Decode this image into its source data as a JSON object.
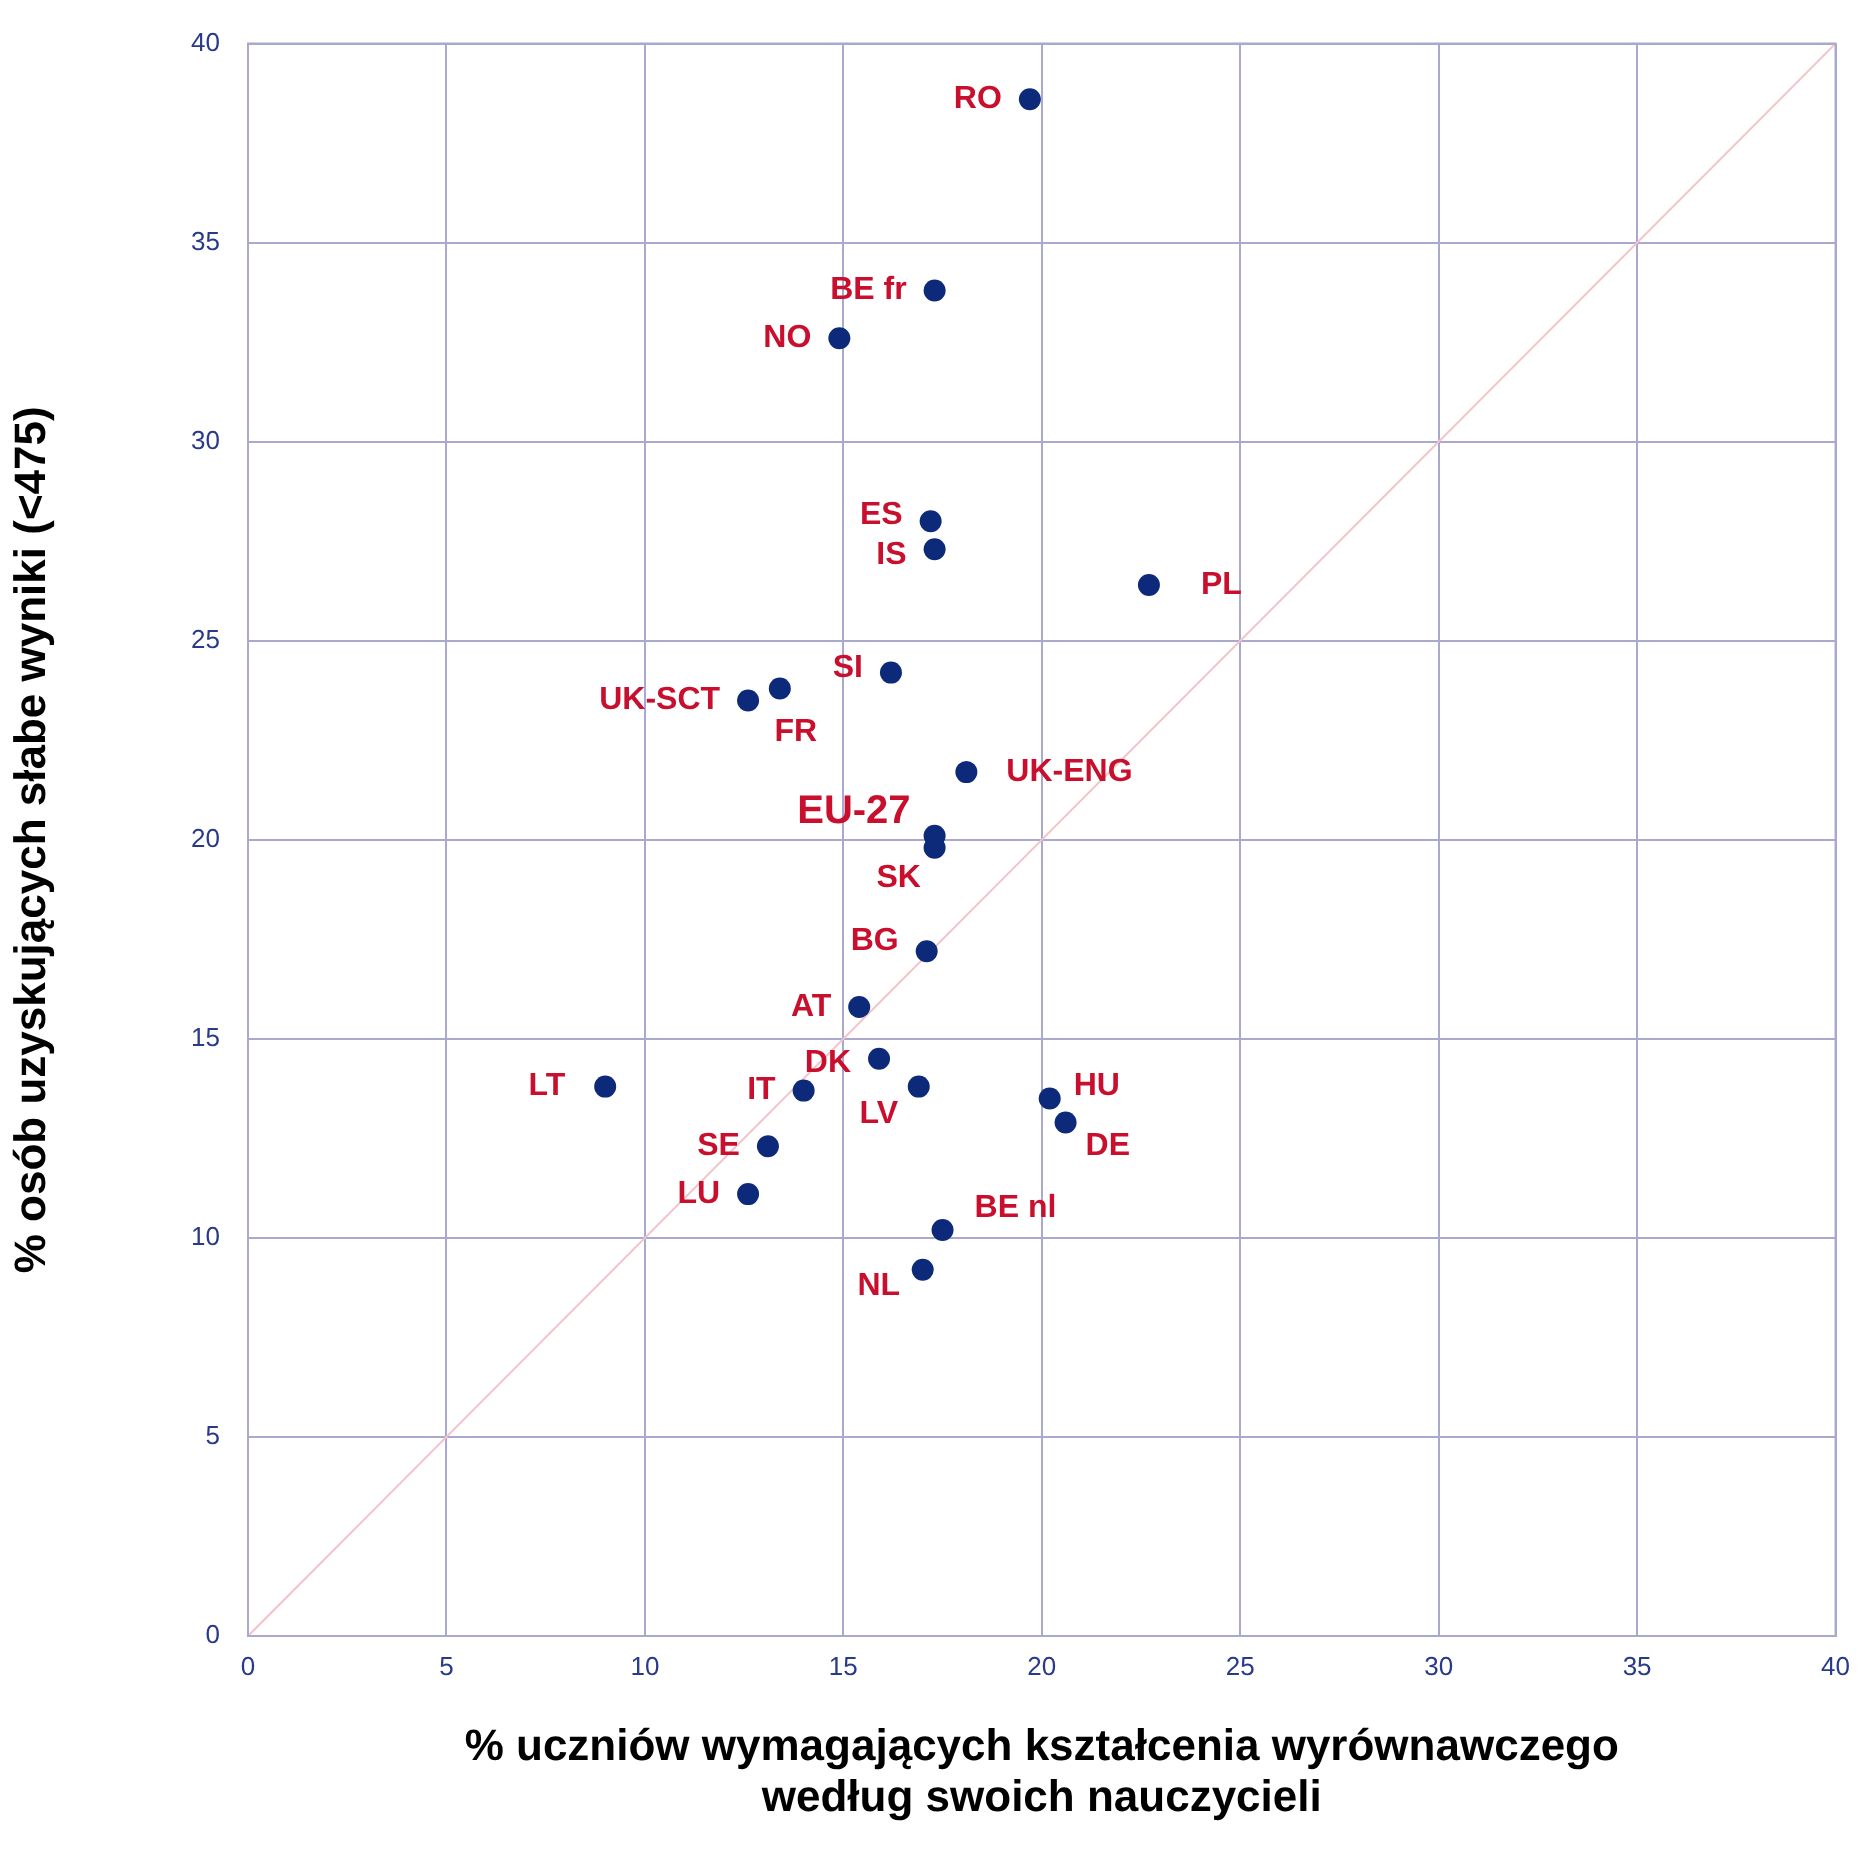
{
  "chart_data": {
    "type": "scatter",
    "xlabel": "% uczniów wymagających kształcenia wyrównawczego\nwedług swoich nauczycieli",
    "ylabel": "% osób uzyskujących słabe wyniki (<475)",
    "xlim": [
      0,
      40
    ],
    "ylim": [
      0,
      40
    ],
    "xticks": [
      0,
      5,
      10,
      15,
      20,
      25,
      30,
      35,
      40
    ],
    "yticks": [
      0,
      5,
      10,
      15,
      20,
      25,
      30,
      35,
      40
    ],
    "grid": true,
    "legend": false,
    "series": [
      {
        "type": "scatter",
        "marker": "circle",
        "color": "#0d2a7a",
        "x": [
          19.7,
          17.3,
          14.9,
          17.2,
          17.3,
          22.7,
          16.2,
          12.6,
          13.4,
          18.1,
          17.3,
          17.3,
          17.1,
          15.4,
          15.9,
          9.0,
          14.0,
          16.9,
          20.2,
          20.6,
          13.1,
          12.6,
          17.5,
          17.0
        ],
        "values": [
          38.6,
          33.8,
          32.6,
          28.0,
          27.3,
          26.4,
          24.2,
          23.5,
          23.8,
          21.7,
          20.1,
          19.8,
          17.2,
          15.8,
          14.5,
          13.8,
          13.7,
          13.8,
          13.5,
          12.9,
          12.3,
          11.1,
          10.2,
          9.2
        ]
      },
      {
        "type": "line",
        "marker": "none",
        "color": "#f2c4c8",
        "x": [
          0,
          40
        ],
        "values": [
          0,
          40
        ]
      }
    ],
    "annotations": [
      {
        "text": "RO",
        "x": 19.7,
        "y": 38.6
      },
      {
        "text": "BE fr",
        "x": 17.3,
        "y": 33.8
      },
      {
        "text": "NO",
        "x": 14.9,
        "y": 32.6
      },
      {
        "text": "ES",
        "x": 17.2,
        "y": 28.0
      },
      {
        "text": "IS",
        "x": 17.3,
        "y": 27.3
      },
      {
        "text": "PL",
        "x": 22.7,
        "y": 26.4
      },
      {
        "text": "SI",
        "x": 16.2,
        "y": 24.2
      },
      {
        "text": "UK-SCT",
        "x": 12.6,
        "y": 23.5
      },
      {
        "text": "FR",
        "x": 13.4,
        "y": 23.8
      },
      {
        "text": "UK-ENG",
        "x": 18.1,
        "y": 21.7
      },
      {
        "text": "EU-27",
        "x": 17.3,
        "y": 20.1
      },
      {
        "text": "SK",
        "x": 17.3,
        "y": 19.8
      },
      {
        "text": "BG",
        "x": 17.1,
        "y": 17.2
      },
      {
        "text": "AT",
        "x": 15.4,
        "y": 15.8
      },
      {
        "text": "DK",
        "x": 15.9,
        "y": 14.5
      },
      {
        "text": "LT",
        "x": 9.0,
        "y": 13.8
      },
      {
        "text": "IT",
        "x": 14.0,
        "y": 13.7
      },
      {
        "text": "LV",
        "x": 16.9,
        "y": 13.8
      },
      {
        "text": "HU",
        "x": 20.2,
        "y": 13.5
      },
      {
        "text": "DE",
        "x": 20.6,
        "y": 12.9
      },
      {
        "text": "SE",
        "x": 13.1,
        "y": 12.3
      },
      {
        "text": "LU",
        "x": 12.6,
        "y": 11.1
      },
      {
        "text": "BE nl",
        "x": 17.5,
        "y": 10.2
      },
      {
        "text": "NL",
        "x": 17.0,
        "y": 9.2
      }
    ]
  }
}
